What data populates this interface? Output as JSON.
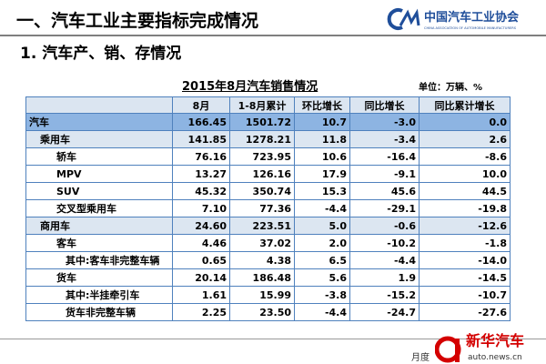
{
  "header": {
    "title": "一、汽车工业主要指标完成情况",
    "logo_name": "中国汽车工业协会",
    "logo_subtitle": "CHINA ASSOCIATION OF AUTOMOBILE MANUFACTURERS"
  },
  "section": "1. 汽车产、销、存情况",
  "table": {
    "title": "2015年8月汽车销售情况",
    "unit": "单位：万辆、%",
    "columns": [
      "",
      "8月",
      "1-8月累计",
      "环比增长",
      "同比增长",
      "同比累计增长"
    ],
    "rows": [
      [
        "汽车",
        "166.45",
        "1501.72",
        "10.7",
        "-3.0",
        "0.0"
      ],
      [
        "乘用车",
        "141.85",
        "1278.21",
        "11.8",
        "-3.4",
        "2.6"
      ],
      [
        "轿车",
        "76.16",
        "723.95",
        "10.6",
        "-16.4",
        "-8.6"
      ],
      [
        "MPV",
        "13.27",
        "126.16",
        "17.9",
        "-9.1",
        "10.0"
      ],
      [
        "SUV",
        "45.32",
        "350.74",
        "15.3",
        "45.6",
        "44.5"
      ],
      [
        "交叉型乘用车",
        "7.10",
        "77.36",
        "-4.4",
        "-29.1",
        "-19.8"
      ],
      [
        "商用车",
        "24.60",
        "223.51",
        "5.0",
        "-0.6",
        "-12.6"
      ],
      [
        "客车",
        "4.46",
        "37.02",
        "2.0",
        "-10.2",
        "-1.8"
      ],
      [
        "其中:客车非完整车辆",
        "0.65",
        "4.38",
        "6.5",
        "-4.4",
        "-14.0"
      ],
      [
        "货车",
        "20.14",
        "186.48",
        "5.6",
        "1.9",
        "-14.5"
      ],
      [
        "其中:半挂牵引车",
        "1.61",
        "15.99",
        "-3.8",
        "-15.2",
        "-10.7"
      ],
      [
        "货车非完整车辆",
        "2.25",
        "23.50",
        "-4.4",
        "-24.7",
        "-27.6"
      ]
    ]
  },
  "footer": "月度",
  "watermark": {
    "brand": "新华汽车",
    "url": "auto.news.cn"
  }
}
